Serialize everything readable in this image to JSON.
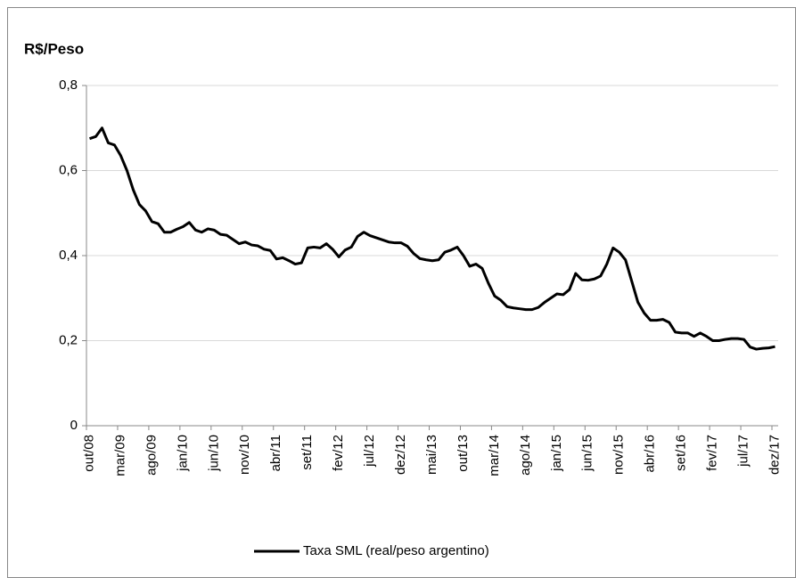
{
  "chart_data": {
    "type": "line",
    "title": "R$/Peso",
    "categories": [
      "out/08",
      null,
      null,
      null,
      null,
      "mar/09",
      null,
      null,
      null,
      null,
      "ago/09",
      null,
      null,
      null,
      null,
      "jan/10",
      null,
      null,
      null,
      null,
      "jun/10",
      null,
      null,
      null,
      null,
      "nov/10",
      null,
      null,
      null,
      null,
      "abr/11",
      null,
      null,
      null,
      null,
      "set/11",
      null,
      null,
      null,
      null,
      "fev/12",
      null,
      null,
      null,
      null,
      "jul/12",
      null,
      null,
      null,
      null,
      "dez/12",
      null,
      null,
      null,
      null,
      "mai/13",
      null,
      null,
      null,
      null,
      "out/13",
      null,
      null,
      null,
      null,
      "mar/14",
      null,
      null,
      null,
      null,
      "ago/14",
      null,
      null,
      null,
      null,
      "jan/15",
      null,
      null,
      null,
      null,
      "jun/15",
      null,
      null,
      null,
      null,
      "nov/15",
      null,
      null,
      null,
      null,
      "abr/16",
      null,
      null,
      null,
      null,
      "set/16",
      null,
      null,
      null,
      null,
      "fev/17",
      null,
      null,
      null,
      null,
      "jul/17",
      null,
      null,
      null,
      null,
      "dez/17"
    ],
    "series": [
      {
        "name": "Taxa SML (real/peso argentino)",
        "color": "#000000",
        "values": [
          0.675,
          0.68,
          0.7,
          0.665,
          0.66,
          0.635,
          0.6,
          0.555,
          0.52,
          0.505,
          0.48,
          0.475,
          0.455,
          0.455,
          0.462,
          0.468,
          0.478,
          0.46,
          0.455,
          0.463,
          0.46,
          0.45,
          0.448,
          0.438,
          0.428,
          0.432,
          0.425,
          0.423,
          0.415,
          0.412,
          0.392,
          0.395,
          0.388,
          0.38,
          0.383,
          0.418,
          0.42,
          0.418,
          0.428,
          0.415,
          0.397,
          0.413,
          0.42,
          0.445,
          0.455,
          0.447,
          0.442,
          0.437,
          0.432,
          0.43,
          0.43,
          0.422,
          0.405,
          0.393,
          0.39,
          0.388,
          0.39,
          0.408,
          0.413,
          0.42,
          0.4,
          0.375,
          0.38,
          0.37,
          0.335,
          0.305,
          0.295,
          0.28,
          0.277,
          0.275,
          0.273,
          0.273,
          0.278,
          0.29,
          0.3,
          0.31,
          0.308,
          0.32,
          0.358,
          0.343,
          0.342,
          0.345,
          0.352,
          0.38,
          0.418,
          0.408,
          0.39,
          0.34,
          0.29,
          0.265,
          0.248,
          0.248,
          0.25,
          0.243,
          0.22,
          0.218,
          0.218,
          0.21,
          0.218,
          0.21,
          0.2,
          0.2,
          0.203,
          0.205,
          0.205,
          0.203,
          0.185,
          0.18,
          0.182,
          0.183,
          0.186
        ]
      }
    ],
    "ylim": [
      0,
      0.8
    ],
    "yticks": [
      0,
      {
        "value": 0.2,
        "label": "0,2"
      },
      {
        "value": 0.4,
        "label": "0,4"
      },
      {
        "value": 0.6,
        "label": "0,6"
      },
      {
        "value": 0.8,
        "label": "0,8"
      }
    ],
    "grid": true,
    "legend": "bottom"
  }
}
